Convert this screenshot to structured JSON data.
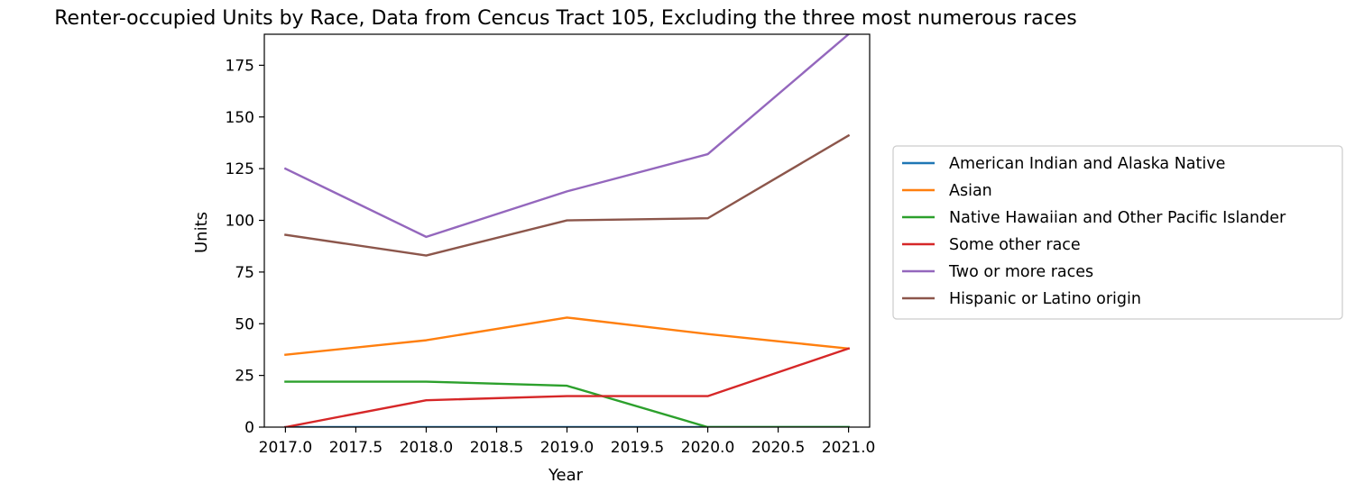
{
  "chart_data": {
    "type": "line",
    "title": "Renter-occupied Units by Race, Data from Cencus Tract 105, Excluding the three most numerous races",
    "xlabel": "Year",
    "ylabel": "Units",
    "x": [
      2017,
      2018,
      2019,
      2020,
      2021
    ],
    "xlim": [
      2016.85,
      2021.15
    ],
    "ylim": [
      0,
      190
    ],
    "x_ticks": [
      "2017.0",
      "2017.5",
      "2018.0",
      "2018.5",
      "2019.0",
      "2019.5",
      "2020.0",
      "2020.5",
      "2021.0"
    ],
    "y_ticks": [
      "0",
      "25",
      "50",
      "75",
      "100",
      "125",
      "150",
      "175"
    ],
    "grid": false,
    "legend_position": "outside-right",
    "series": [
      {
        "name": "American Indian and Alaska Native",
        "color": "#1f77b4",
        "values": [
          0,
          0,
          0,
          0,
          0
        ]
      },
      {
        "name": "Asian",
        "color": "#ff7f0e",
        "values": [
          35,
          42,
          53,
          45,
          38
        ]
      },
      {
        "name": "Native Hawaiian and Other Pacific Islander",
        "color": "#2ca02c",
        "values": [
          22,
          22,
          20,
          0,
          0
        ]
      },
      {
        "name": "Some other race",
        "color": "#d62728",
        "values": [
          0,
          13,
          15,
          15,
          38
        ]
      },
      {
        "name": "Two or more races",
        "color": "#9467bd",
        "values": [
          125,
          92,
          114,
          132,
          190
        ]
      },
      {
        "name": "Hispanic or Latino origin",
        "color": "#8c564b",
        "values": [
          93,
          83,
          100,
          101,
          141
        ]
      }
    ]
  }
}
